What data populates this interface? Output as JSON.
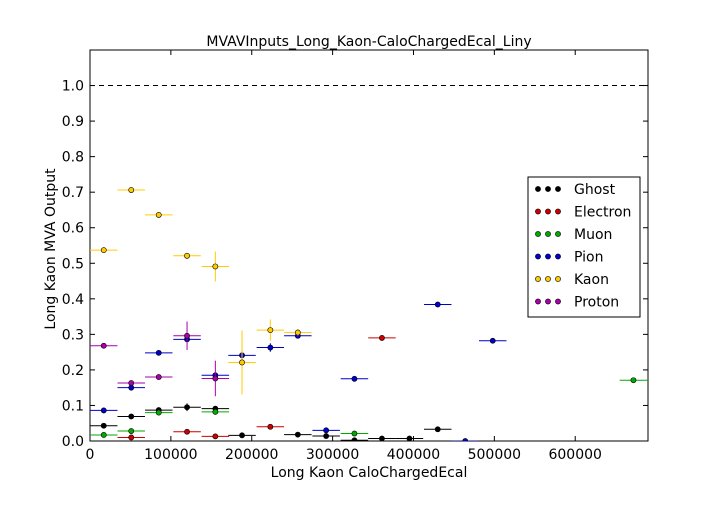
{
  "chart_data": {
    "type": "scatter",
    "title": "MVAVInputs_Long_Kaon-CaloChargedEcal_Liny",
    "xlabel": "Long Kaon CaloChargedEcal",
    "ylabel": "Long Kaon MVA Output",
    "xlim": [
      0,
      690000
    ],
    "ylim": [
      0,
      1.1
    ],
    "x_ticks": [
      0,
      100000,
      200000,
      300000,
      400000,
      500000,
      600000
    ],
    "x_tick_labels": [
      "0",
      "100000",
      "200000",
      "300000",
      "400000",
      "500000",
      "600000"
    ],
    "y_ticks": [
      0.0,
      0.1,
      0.2,
      0.3,
      0.4,
      0.5,
      0.6,
      0.7,
      0.8,
      0.9,
      1.0
    ],
    "y_tick_labels": [
      "0.0",
      "0.1",
      "0.2",
      "0.3",
      "0.4",
      "0.5",
      "0.6",
      "0.7",
      "0.8",
      "0.9",
      "1.0"
    ],
    "reference_line": {
      "y": 1.0,
      "style": "dashed"
    },
    "grid": false,
    "legend_position": "right",
    "series": [
      {
        "name": "Ghost",
        "color": "#000000",
        "points": [
          {
            "x": 17000,
            "y": 0.043,
            "xerr": 17000,
            "yerr": 0.004
          },
          {
            "x": 51000,
            "y": 0.069,
            "xerr": 17000,
            "yerr": 0.004
          },
          {
            "x": 85000,
            "y": 0.087,
            "xerr": 17000,
            "yerr": 0.005
          },
          {
            "x": 120000,
            "y": 0.095,
            "xerr": 17000,
            "yerr": 0.011
          },
          {
            "x": 155000,
            "y": 0.091,
            "xerr": 17000,
            "yerr": 0.006
          },
          {
            "x": 188000,
            "y": 0.016,
            "xerr": 17000,
            "yerr": 0.004
          },
          {
            "x": 257000,
            "y": 0.018,
            "xerr": 17000,
            "yerr": 0.004
          },
          {
            "x": 292000,
            "y": 0.014,
            "xerr": 17000,
            "yerr": 0.004
          },
          {
            "x": 327000,
            "y": 0.002,
            "xerr": 17000,
            "yerr": 0.002
          },
          {
            "x": 361000,
            "y": 0.007,
            "xerr": 17000,
            "yerr": 0.003
          },
          {
            "x": 395000,
            "y": 0.007,
            "xerr": 17000,
            "yerr": 0.003
          },
          {
            "x": 430000,
            "y": 0.033,
            "xerr": 17000,
            "yerr": 0.004
          }
        ]
      },
      {
        "name": "Electron",
        "color": "#cc0000",
        "points": [
          {
            "x": 51000,
            "y": 0.01,
            "xerr": 17000,
            "yerr": 0.003
          },
          {
            "x": 120000,
            "y": 0.026,
            "xerr": 17000,
            "yerr": 0.004
          },
          {
            "x": 155000,
            "y": 0.013,
            "xerr": 17000,
            "yerr": 0.003
          },
          {
            "x": 223000,
            "y": 0.04,
            "xerr": 17000,
            "yerr": 0.004
          },
          {
            "x": 361000,
            "y": 0.29,
            "xerr": 17000,
            "yerr": 0.003
          }
        ]
      },
      {
        "name": "Muon",
        "color": "#00aa00",
        "points": [
          {
            "x": 17000,
            "y": 0.017,
            "xerr": 17000,
            "yerr": 0.003
          },
          {
            "x": 51000,
            "y": 0.028,
            "xerr": 17000,
            "yerr": 0.005
          },
          {
            "x": 85000,
            "y": 0.08,
            "xerr": 17000,
            "yerr": 0.006
          },
          {
            "x": 155000,
            "y": 0.082,
            "xerr": 17000,
            "yerr": 0.008
          },
          {
            "x": 327000,
            "y": 0.021,
            "xerr": 17000,
            "yerr": 0.003
          },
          {
            "x": 672000,
            "y": 0.171,
            "xerr": 17000,
            "yerr": 0.003
          }
        ]
      },
      {
        "name": "Pion",
        "color": "#0000cc",
        "points": [
          {
            "x": 17000,
            "y": 0.086,
            "xerr": 17000,
            "yerr": 0.004
          },
          {
            "x": 51000,
            "y": 0.15,
            "xerr": 17000,
            "yerr": 0.005
          },
          {
            "x": 85000,
            "y": 0.248,
            "xerr": 17000,
            "yerr": 0.005
          },
          {
            "x": 120000,
            "y": 0.286,
            "xerr": 17000,
            "yerr": 0.009
          },
          {
            "x": 155000,
            "y": 0.185,
            "xerr": 17000,
            "yerr": 0.007
          },
          {
            "x": 188000,
            "y": 0.241,
            "xerr": 17000,
            "yerr": 0.012
          },
          {
            "x": 223000,
            "y": 0.263,
            "xerr": 17000,
            "yerr": 0.012
          },
          {
            "x": 257000,
            "y": 0.296,
            "xerr": 17000,
            "yerr": 0.006
          },
          {
            "x": 292000,
            "y": 0.03,
            "xerr": 17000,
            "yerr": 0.004
          },
          {
            "x": 327000,
            "y": 0.175,
            "xerr": 17000,
            "yerr": 0.004
          },
          {
            "x": 430000,
            "y": 0.384,
            "xerr": 17000,
            "yerr": 0.004
          },
          {
            "x": 464000,
            "y": 0.0,
            "xerr": 17000,
            "yerr": 0.002
          },
          {
            "x": 498000,
            "y": 0.282,
            "xerr": 17000,
            "yerr": 0.004
          }
        ]
      },
      {
        "name": "Kaon",
        "color": "#ffcc00",
        "points": [
          {
            "x": 17000,
            "y": 0.537,
            "xerr": 17000,
            "yerr": 0.004
          },
          {
            "x": 51000,
            "y": 0.706,
            "xerr": 17000,
            "yerr": 0.004
          },
          {
            "x": 85000,
            "y": 0.636,
            "xerr": 17000,
            "yerr": 0.004
          },
          {
            "x": 120000,
            "y": 0.521,
            "xerr": 17000,
            "yerr": 0.008
          },
          {
            "x": 155000,
            "y": 0.491,
            "xerr": 17000,
            "yerr": 0.042
          },
          {
            "x": 188000,
            "y": 0.221,
            "xerr": 17000,
            "yerr": 0.09
          },
          {
            "x": 223000,
            "y": 0.312,
            "xerr": 17000,
            "yerr": 0.03
          },
          {
            "x": 257000,
            "y": 0.305,
            "xerr": 17000,
            "yerr": 0.01
          }
        ]
      },
      {
        "name": "Proton",
        "color": "#aa00aa",
        "points": [
          {
            "x": 17000,
            "y": 0.268,
            "xerr": 17000,
            "yerr": 0.004
          },
          {
            "x": 51000,
            "y": 0.163,
            "xerr": 17000,
            "yerr": 0.005
          },
          {
            "x": 85000,
            "y": 0.18,
            "xerr": 17000,
            "yerr": 0.005
          },
          {
            "x": 120000,
            "y": 0.296,
            "xerr": 17000,
            "yerr": 0.04
          },
          {
            "x": 155000,
            "y": 0.176,
            "xerr": 17000,
            "yerr": 0.05
          }
        ]
      }
    ]
  }
}
